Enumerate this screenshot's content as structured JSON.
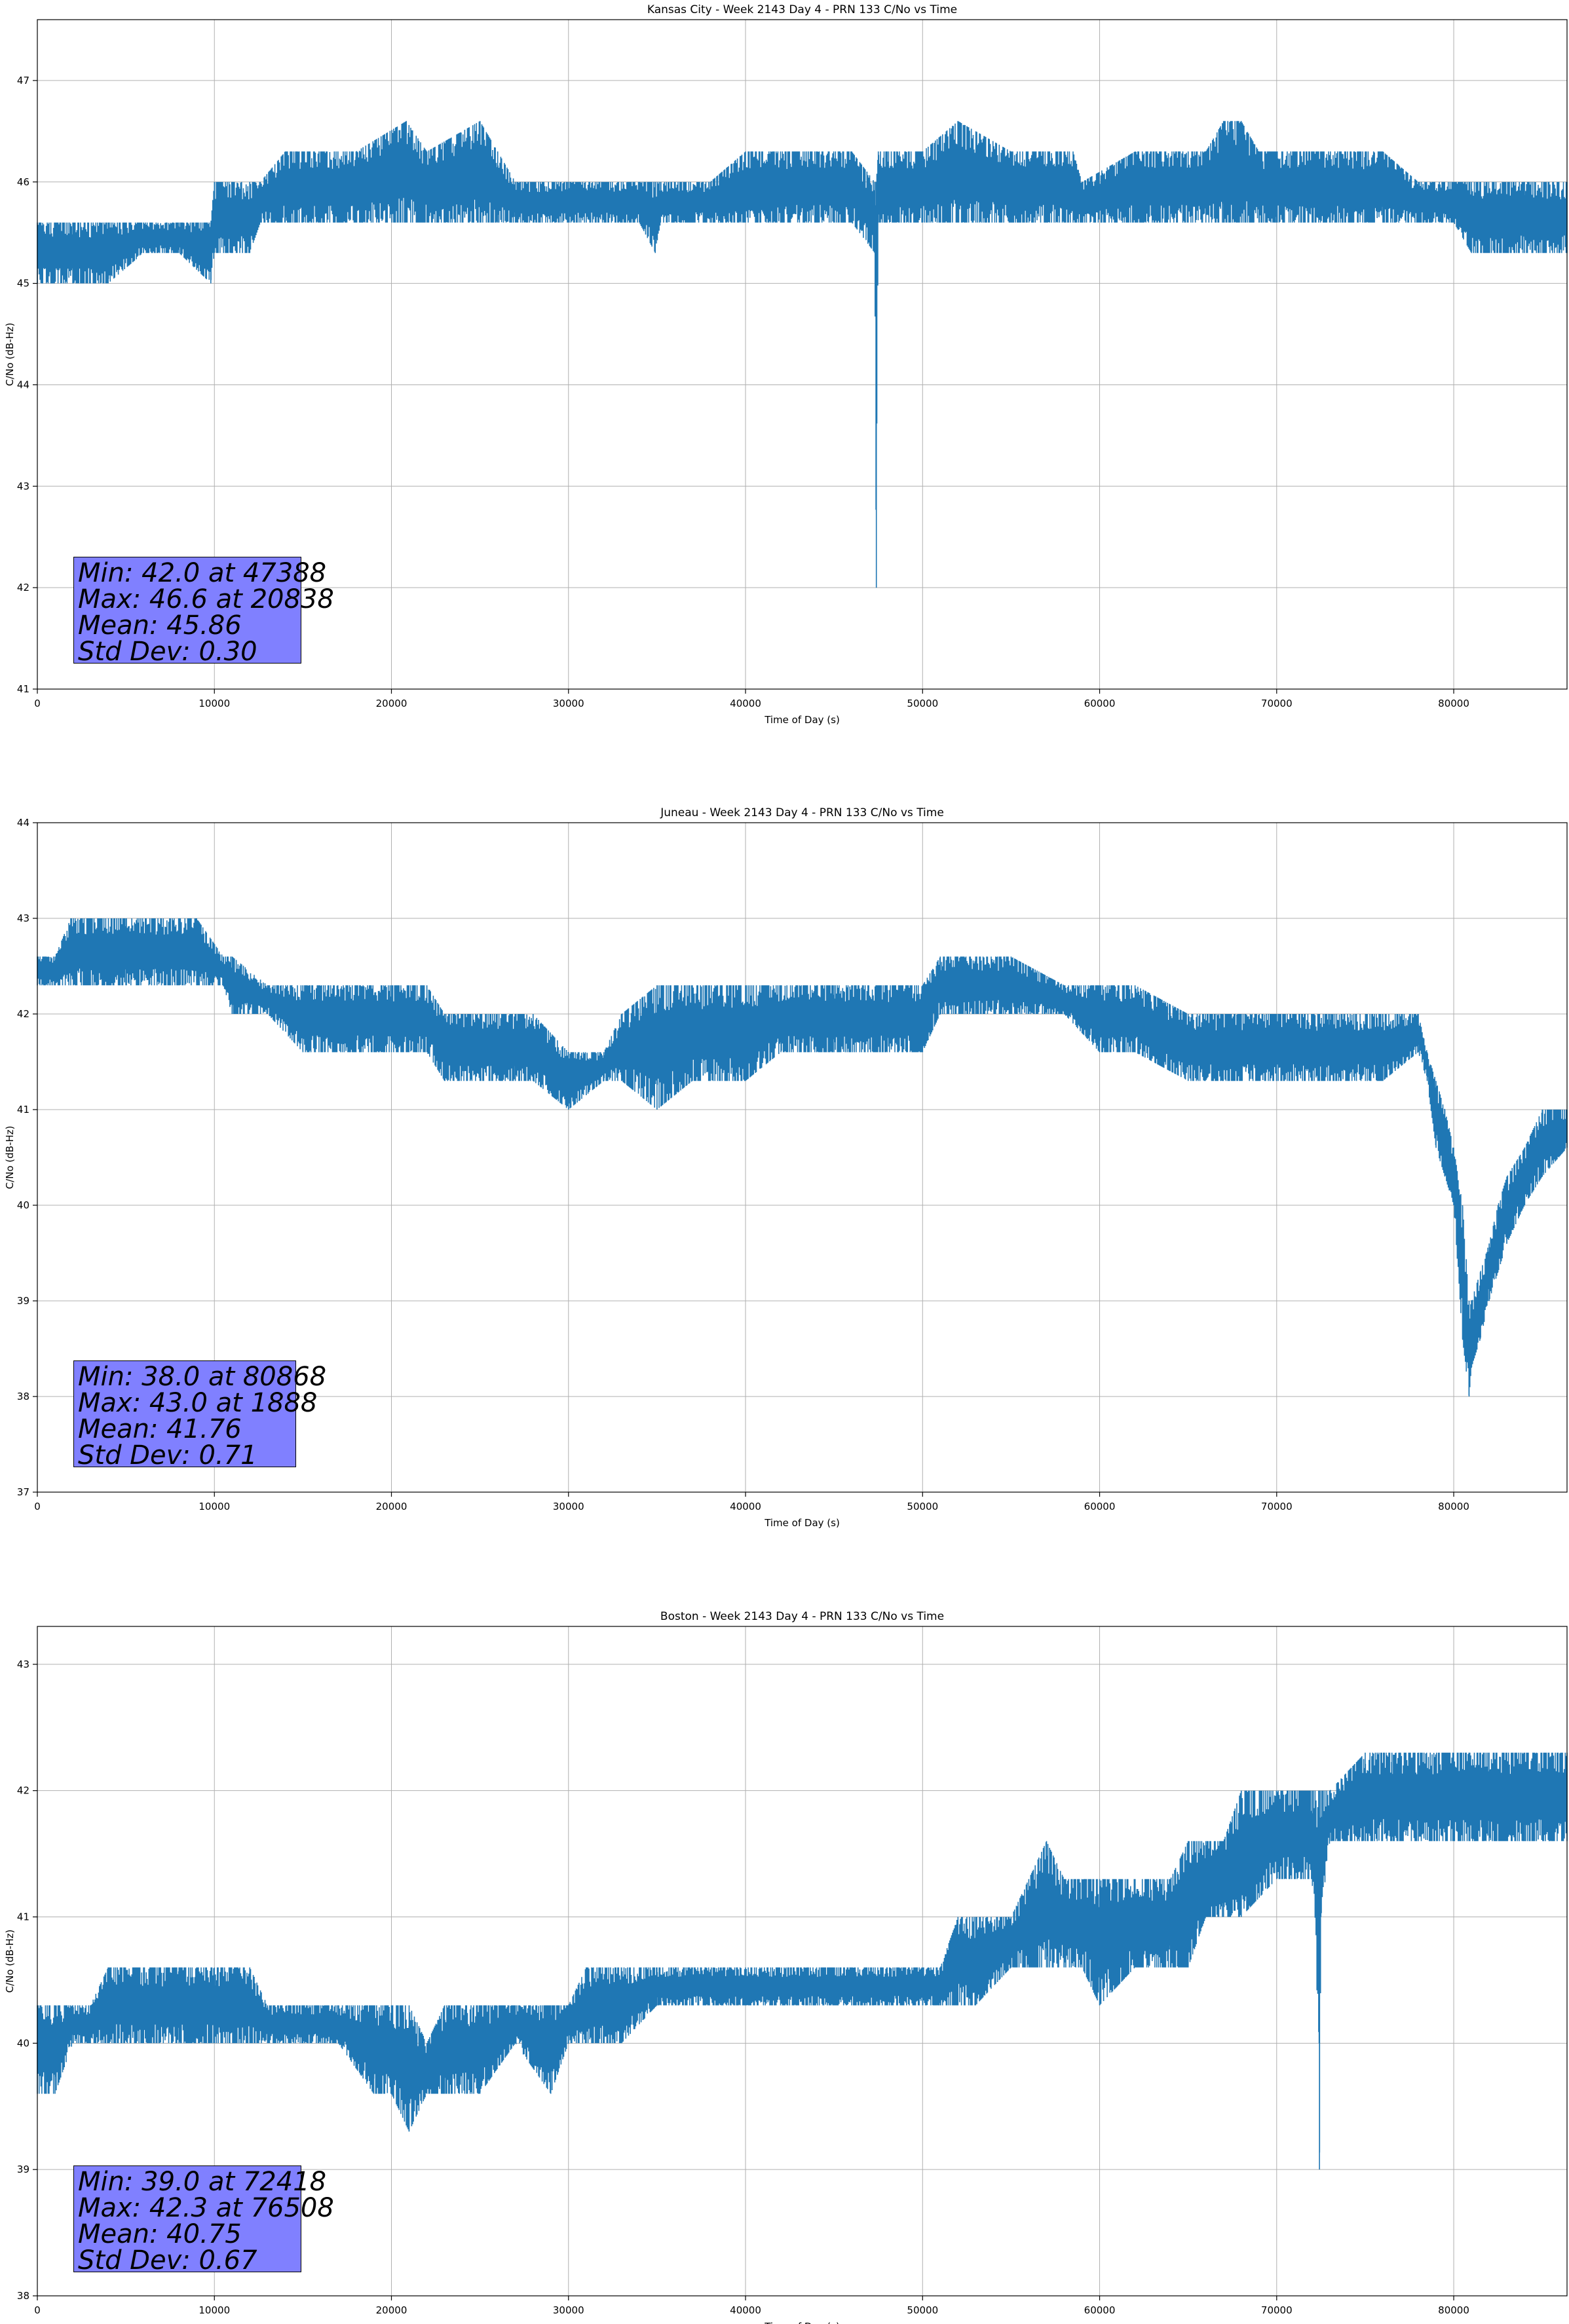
{
  "chart_data": [
    {
      "type": "line",
      "title": "Kansas City - Week 2143 Day 4 - PRN 133 C/No vs Time",
      "xlabel": "Time of Day (s)",
      "ylabel": "C/No (dB-Hz)",
      "xlim": [
        0,
        86400
      ],
      "ylim": [
        41,
        47.6
      ],
      "xticks": [
        0,
        10000,
        20000,
        30000,
        40000,
        50000,
        60000,
        70000,
        80000
      ],
      "yticks": [
        41,
        42,
        43,
        44,
        45,
        46,
        47
      ],
      "grid": true,
      "series_color": "#1f77b4",
      "stats_box_color": "#8080ff",
      "stats": {
        "min": "Min: 42.0 at 47388",
        "max": "Max: 46.6 at 20838",
        "mean": "Mean: 45.86",
        "std": "Std Dev: 0.30"
      },
      "series": [
        {
          "x": [
            0,
            2000,
            4000,
            6000,
            8000,
            9800,
            10000,
            12000,
            12600,
            14000,
            15000,
            16000,
            18000,
            20838,
            22000,
            25000,
            26000,
            27000,
            30000,
            34000,
            34900,
            35200,
            38000,
            40000,
            44000,
            46000,
            47300,
            47388,
            47500,
            48000,
            49000,
            50000,
            52000,
            55000,
            58500,
            59000,
            62000,
            65000,
            66000,
            67000,
            68000,
            69000,
            70000,
            72000,
            75000,
            76000,
            78000,
            80000,
            81000,
            84000,
            86400
          ],
          "low": [
            45.0,
            45.0,
            45.0,
            45.3,
            45.3,
            45.0,
            45.3,
            45.3,
            45.6,
            45.6,
            45.6,
            45.6,
            45.6,
            45.6,
            45.6,
            45.6,
            45.6,
            45.6,
            45.6,
            45.6,
            45.3,
            45.6,
            45.6,
            45.6,
            45.6,
            45.6,
            45.3,
            42.0,
            45.6,
            45.6,
            45.6,
            45.6,
            45.6,
            45.6,
            45.6,
            45.6,
            45.6,
            45.6,
            45.6,
            45.6,
            45.6,
            45.6,
            45.6,
            45.6,
            45.6,
            45.6,
            45.6,
            45.6,
            45.3,
            45.3,
            45.3
          ],
          "high": [
            45.6,
            45.6,
            45.6,
            45.6,
            45.6,
            45.6,
            46.0,
            46.0,
            46.0,
            46.3,
            46.3,
            46.3,
            46.3,
            46.6,
            46.3,
            46.6,
            46.3,
            46.0,
            46.0,
            46.0,
            46.0,
            46.0,
            46.0,
            46.3,
            46.3,
            46.3,
            46.0,
            46.0,
            46.3,
            46.3,
            46.3,
            46.3,
            46.6,
            46.3,
            46.3,
            46.0,
            46.3,
            46.3,
            46.3,
            46.6,
            46.6,
            46.3,
            46.3,
            46.3,
            46.3,
            46.3,
            46.0,
            46.0,
            46.0,
            46.0,
            46.0
          ]
        }
      ]
    },
    {
      "type": "line",
      "title": "Juneau - Week 2143 Day 4 - PRN 133 C/No vs Time",
      "xlabel": "Time of Day (s)",
      "ylabel": "C/No (dB-Hz)",
      "xlim": [
        0,
        86400
      ],
      "ylim": [
        37,
        44
      ],
      "xticks": [
        0,
        10000,
        20000,
        30000,
        40000,
        50000,
        60000,
        70000,
        80000
      ],
      "yticks": [
        37,
        38,
        39,
        40,
        41,
        42,
        43,
        44
      ],
      "grid": true,
      "series_color": "#1f77b4",
      "stats_box_color": "#8080ff",
      "stats": {
        "min": "Min: 38.0 at 80868",
        "max": "Max: 43.0 at 1888",
        "mean": "Mean: 41.76",
        "std": "Std Dev: 0.71"
      },
      "series": [
        {
          "x": [
            0,
            1000,
            1888,
            3000,
            5000,
            7500,
            9000,
            10500,
            11000,
            13000,
            15000,
            18000,
            20000,
            22000,
            23000,
            25000,
            27000,
            28000,
            30000,
            32000,
            33000,
            35000,
            37000,
            40000,
            42000,
            45000,
            48000,
            50000,
            51000,
            53000,
            55000,
            58000,
            60000,
            62000,
            65000,
            68000,
            70000,
            73000,
            76000,
            78000,
            78500,
            79000,
            79500,
            80000,
            80500,
            80868,
            81000,
            81500,
            82000,
            82500,
            83000,
            84000,
            85000,
            86400
          ],
          "low": [
            42.3,
            42.3,
            42.3,
            42.3,
            42.3,
            42.3,
            42.3,
            42.3,
            42.0,
            42.0,
            41.6,
            41.6,
            41.6,
            41.6,
            41.3,
            41.3,
            41.3,
            41.3,
            41.0,
            41.3,
            41.3,
            41.0,
            41.3,
            41.3,
            41.6,
            41.6,
            41.6,
            41.6,
            42.0,
            42.0,
            42.0,
            42.0,
            41.6,
            41.6,
            41.3,
            41.3,
            41.3,
            41.3,
            41.3,
            41.6,
            41.3,
            40.6,
            40.3,
            40.0,
            38.6,
            38.0,
            38.3,
            38.6,
            39.0,
            39.3,
            39.6,
            40.0,
            40.3,
            40.6
          ],
          "high": [
            42.6,
            42.6,
            43.0,
            43.0,
            43.0,
            43.0,
            43.0,
            42.6,
            42.6,
            42.3,
            42.3,
            42.3,
            42.3,
            42.3,
            42.0,
            42.0,
            42.0,
            42.0,
            41.6,
            41.6,
            42.0,
            42.3,
            42.3,
            42.3,
            42.3,
            42.3,
            42.3,
            42.3,
            42.6,
            42.6,
            42.6,
            42.3,
            42.3,
            42.3,
            42.0,
            42.0,
            42.0,
            42.0,
            42.0,
            42.0,
            41.6,
            41.3,
            41.0,
            40.6,
            40.0,
            39.0,
            39.0,
            39.3,
            39.6,
            40.0,
            40.3,
            40.6,
            41.0,
            41.0
          ]
        }
      ]
    },
    {
      "type": "line",
      "title": "Boston - Week 2143 Day 4 - PRN 133 C/No vs Time",
      "xlabel": "Time of Day (s)",
      "ylabel": "C/No (dB-Hz)",
      "xlim": [
        0,
        86400
      ],
      "ylim": [
        38,
        43.3
      ],
      "xticks": [
        0,
        10000,
        20000,
        30000,
        40000,
        50000,
        60000,
        70000,
        80000
      ],
      "yticks": [
        38,
        39,
        40,
        41,
        42,
        43
      ],
      "grid": true,
      "series_color": "#1f77b4",
      "stats_box_color": "#8080ff",
      "stats": {
        "min": "Min: 39.0 at 72418",
        "max": "Max: 42.3 at 76508",
        "mean": "Mean: 40.75",
        "std": "Std Dev: 0.67"
      },
      "series": [
        {
          "x": [
            0,
            1000,
            2000,
            3000,
            4000,
            6000,
            8000,
            10000,
            12000,
            13000,
            15000,
            17000,
            19000,
            20000,
            21000,
            22000,
            23000,
            25000,
            27000,
            29000,
            30000,
            31000,
            33000,
            35000,
            37000,
            40000,
            43000,
            46000,
            48000,
            50000,
            51000,
            52000,
            53000,
            55000,
            56000,
            57000,
            58000,
            59000,
            60000,
            62000,
            64000,
            65000,
            66000,
            67000,
            68000,
            70000,
            71000,
            72000,
            72400,
            72418,
            72500,
            73000,
            75000,
            76508,
            78000,
            80000,
            82000,
            84000,
            86400
          ],
          "low": [
            39.6,
            39.6,
            40.0,
            40.0,
            40.0,
            40.0,
            40.0,
            40.0,
            40.0,
            40.0,
            40.0,
            40.0,
            39.6,
            39.6,
            39.3,
            39.6,
            39.6,
            39.6,
            40.0,
            39.6,
            40.0,
            40.0,
            40.0,
            40.3,
            40.3,
            40.3,
            40.3,
            40.3,
            40.3,
            40.3,
            40.3,
            40.3,
            40.3,
            40.6,
            40.6,
            40.6,
            40.6,
            40.6,
            40.3,
            40.6,
            40.6,
            40.6,
            41.0,
            41.0,
            41.0,
            41.3,
            41.3,
            41.3,
            40.0,
            39.0,
            41.0,
            41.6,
            41.6,
            41.6,
            41.6,
            41.6,
            41.6,
            41.6,
            41.6
          ],
          "high": [
            40.3,
            40.3,
            40.3,
            40.3,
            40.6,
            40.6,
            40.6,
            40.6,
            40.6,
            40.3,
            40.3,
            40.3,
            40.3,
            40.3,
            40.3,
            40.0,
            40.3,
            40.3,
            40.3,
            40.3,
            40.3,
            40.6,
            40.6,
            40.6,
            40.6,
            40.6,
            40.6,
            40.6,
            40.6,
            40.6,
            40.6,
            41.0,
            41.0,
            41.0,
            41.3,
            41.6,
            41.3,
            41.3,
            41.3,
            41.3,
            41.3,
            41.6,
            41.6,
            41.6,
            42.0,
            42.0,
            42.0,
            42.0,
            42.0,
            42.0,
            42.0,
            42.0,
            42.3,
            42.3,
            42.3,
            42.3,
            42.3,
            42.3,
            42.3
          ]
        }
      ]
    }
  ]
}
